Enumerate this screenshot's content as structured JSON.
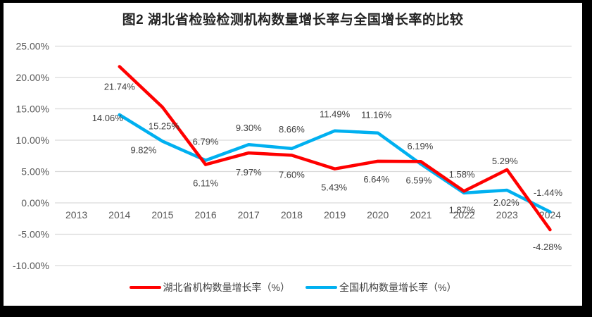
{
  "frame": {
    "background": "#000000",
    "content_background": "#ffffff"
  },
  "colors": {
    "gridline": "#d9d9d9",
    "axis_text": "#595959",
    "data_label_text": "#404040",
    "title_text": "#222222"
  },
  "chart_data": {
    "type": "line",
    "title": "图2  湖北省检验检测机构数量增长率与全国增长率的比较",
    "categories": [
      "2013",
      "2014",
      "2015",
      "2016",
      "2017",
      "2018",
      "2019",
      "2020",
      "2021",
      "2022",
      "2023",
      "2024"
    ],
    "start_index": 1,
    "y_ticks": [
      "25.00%",
      "20.00%",
      "15.00%",
      "10.00%",
      "5.00%",
      "0.00%",
      "-5.00%",
      "-10.00%"
    ],
    "ylim": [
      -10,
      25
    ],
    "grid": true,
    "legend_position": "bottom",
    "series": [
      {
        "name": "湖北省机构数量增长率（%）",
        "slug": "hubei",
        "color": "#ff0000",
        "values": [
          21.74,
          15.25,
          6.11,
          7.97,
          7.6,
          5.43,
          6.64,
          6.59,
          1.87,
          5.29,
          -4.28
        ],
        "labels": [
          "21.74%",
          "15.25%",
          "6.11%",
          "7.97%",
          "7.60%",
          "5.43%",
          "6.64%",
          "6.59%",
          "1.87%",
          "5.29%",
          "-4.28%"
        ],
        "label_offsets": [
          [
            0,
            29
          ],
          [
            2,
            27
          ],
          [
            0,
            27
          ],
          [
            0,
            28
          ],
          [
            0,
            28
          ],
          [
            -1,
            27
          ],
          [
            -2,
            26
          ],
          [
            -3,
            27
          ],
          [
            -3,
            27
          ],
          [
            -3,
            -12
          ],
          [
            -4,
            25
          ]
        ]
      },
      {
        "name": "全国机构数量增长率（%）",
        "slug": "national",
        "color": "#00b0f0",
        "values": [
          14.06,
          9.82,
          6.79,
          9.3,
          8.66,
          11.49,
          11.16,
          6.19,
          1.58,
          2.02,
          -1.44
        ],
        "labels": [
          "14.06%",
          "9.82%",
          "6.79%",
          "9.30%",
          "8.66%",
          "11.49%",
          "11.16%",
          "6.19%",
          "1.58%",
          "2.02%",
          "-1.44%"
        ],
        "label_offsets": [
          [
            -17,
            5
          ],
          [
            -27,
            13
          ],
          [
            0,
            -26
          ],
          [
            0,
            -23
          ],
          [
            0,
            -27
          ],
          [
            0,
            -23
          ],
          [
            -2,
            -25
          ],
          [
            -1,
            -25
          ],
          [
            -3,
            -26
          ],
          [
            -1,
            18
          ],
          [
            -3,
            -27
          ]
        ]
      }
    ]
  }
}
